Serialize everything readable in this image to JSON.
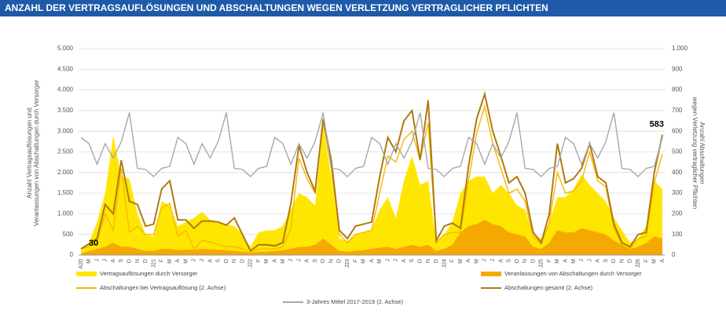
{
  "chart_data": {
    "type": "combo",
    "title": "ANZAHL DER VERTRAGSAUFLÖSUNGEN UND ABSCHALTUNGEN WEGEN VERLETZUNG VERTRAGLICHER PFLICHTEN",
    "ylabel": [
      "Anzahl Vertragsauflösungen und",
      "Veranlassungen von Abschaltungen durch Versorger"
    ],
    "y2label": [
      "Anzahl Abschaltungen",
      "wegen Verletzung vertraglicher Pflichten"
    ],
    "categories": [
      "A20",
      "M",
      "J",
      "J",
      "A",
      "S",
      "O",
      "N",
      "D",
      "J21",
      "F",
      "M",
      "A",
      "M",
      "J",
      "J",
      "A",
      "S",
      "O",
      "N",
      "D",
      "J22",
      "F",
      "M",
      "A",
      "M",
      "J",
      "J",
      "A",
      "S",
      "O",
      "N",
      "D",
      "J23",
      "F",
      "M",
      "A",
      "M",
      "J",
      "J",
      "A",
      "S",
      "O",
      "N",
      "D",
      "J24",
      "F",
      "M",
      "A",
      "M",
      "J",
      "J",
      "A",
      "S",
      "O",
      "N",
      "D",
      "J25",
      "F",
      "M",
      "A",
      "M",
      "J",
      "J",
      "A",
      "S",
      "O",
      "N",
      "D",
      "J26",
      "F",
      "M",
      "A"
    ],
    "ylim": [
      0,
      5000
    ],
    "yticks": [
      0,
      500,
      {
        "value": 1000,
        "label": "1.000"
      },
      {
        "value": 1500,
        "label": "1.500"
      },
      {
        "value": 2000,
        "label": "2.000"
      },
      {
        "value": 2500,
        "label": "2.500"
      },
      {
        "value": 3000,
        "label": "3.000"
      },
      {
        "value": 3500,
        "label": "3.500"
      },
      {
        "value": 4000,
        "label": "4.000"
      },
      {
        "value": 4500,
        "label": "4.500"
      },
      {
        "value": 5000,
        "label": "5.000"
      }
    ],
    "y2lim": [
      0,
      1000
    ],
    "y2ticks": [
      0,
      100,
      200,
      300,
      400,
      500,
      600,
      700,
      800,
      900,
      {
        "value": 1000,
        "label": "1.000"
      }
    ],
    "grid": true,
    "series": [
      {
        "name": "Vertragsauflösungen durch Versorger",
        "type": "area",
        "color": "#ffe600",
        "values": [
          100,
          300,
          800,
          1500,
          2900,
          1900,
          1850,
          1000,
          500,
          450,
          1300,
          1200,
          700,
          800,
          900,
          1050,
          850,
          800,
          750,
          700,
          500,
          200,
          550,
          600,
          600,
          700,
          1100,
          1500,
          1400,
          1200,
          3100,
          1900,
          400,
          350,
          500,
          550,
          600,
          1100,
          1400,
          900,
          1800,
          2400,
          1700,
          1800,
          300,
          500,
          800,
          1500,
          1800,
          1900,
          1900,
          1500,
          1700,
          1500,
          1200,
          1100,
          500,
          400,
          800,
          1400,
          1400,
          1600,
          1950,
          1700,
          1500,
          1300,
          900,
          600,
          300,
          400,
          700,
          1800,
          1600
        ]
      },
      {
        "name": "Veranlassungen von Abschaltungen durch Versorger",
        "type": "area",
        "color": "#f5a800",
        "values": [
          30,
          100,
          150,
          200,
          300,
          200,
          200,
          150,
          100,
          100,
          150,
          150,
          120,
          130,
          130,
          150,
          140,
          130,
          120,
          100,
          80,
          50,
          80,
          80,
          100,
          120,
          150,
          200,
          200,
          250,
          400,
          250,
          100,
          80,
          100,
          120,
          150,
          180,
          200,
          150,
          200,
          250,
          200,
          250,
          100,
          150,
          250,
          550,
          700,
          750,
          850,
          750,
          700,
          550,
          500,
          450,
          200,
          150,
          300,
          600,
          550,
          550,
          650,
          600,
          550,
          500,
          350,
          250,
          150,
          200,
          300,
          450,
          400
        ]
      },
      {
        "name": "Abschaltungen bei Vertragsauflösung (2. Achse)",
        "type": "line",
        "axis": "y2",
        "color": "#f7b800",
        "values": [
          30,
          40,
          60,
          200,
          120,
          420,
          110,
          140,
          100,
          100,
          230,
          250,
          90,
          120,
          30,
          70,
          65,
          50,
          40,
          40,
          30,
          10,
          30,
          30,
          30,
          40,
          130,
          470,
          370,
          300,
          640,
          420,
          100,
          60,
          100,
          110,
          120,
          300,
          480,
          450,
          560,
          600,
          460,
          640,
          60,
          100,
          110,
          110,
          360,
          590,
          720,
          540,
          420,
          300,
          320,
          260,
          90,
          50,
          160,
          400,
          300,
          310,
          360,
          500,
          360,
          330,
          130,
          50,
          30,
          80,
          90,
          350,
          490
        ]
      },
      {
        "name": "Abschaltungen gesamt (2. Achse)",
        "type": "line",
        "axis": "y2",
        "color": "#b07a12",
        "values": [
          30,
          55,
          80,
          245,
          200,
          460,
          260,
          245,
          140,
          150,
          320,
          360,
          170,
          170,
          130,
          165,
          165,
          160,
          145,
          180,
          100,
          20,
          50,
          50,
          45,
          60,
          250,
          530,
          400,
          310,
          660,
          460,
          120,
          80,
          140,
          150,
          160,
          380,
          570,
          500,
          650,
          700,
          460,
          750,
          70,
          140,
          155,
          130,
          430,
          660,
          780,
          600,
          480,
          350,
          380,
          300,
          110,
          60,
          200,
          540,
          350,
          370,
          420,
          540,
          380,
          350,
          150,
          60,
          40,
          100,
          110,
          400,
          583
        ]
      },
      {
        "name": "3-Jahres Mittel 2017-2019 (2. Achse)",
        "type": "line",
        "axis": "y2",
        "color": "#a8a8a8",
        "values": [
          570,
          540,
          440,
          540,
          470,
          550,
          690,
          420,
          415,
          380,
          420,
          430,
          570,
          540,
          440,
          540,
          470,
          550,
          690,
          420,
          415,
          380,
          420,
          430,
          570,
          540,
          440,
          540,
          470,
          550,
          690,
          420,
          415,
          380,
          420,
          430,
          570,
          540,
          440,
          540,
          470,
          550,
          690,
          420,
          415,
          380,
          420,
          430,
          570,
          540,
          440,
          540,
          470,
          550,
          690,
          420,
          415,
          380,
          420,
          430,
          570,
          540,
          440,
          540,
          470,
          550,
          690,
          420,
          415,
          380,
          420,
          430,
          570
        ]
      }
    ]
  }
}
